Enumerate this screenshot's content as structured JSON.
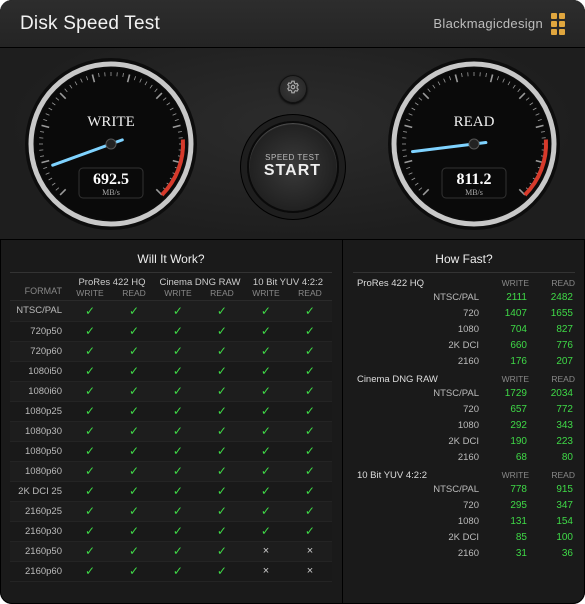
{
  "header": {
    "app_title": "Disk Speed Test",
    "brand_text": "Blackmagicdesign",
    "brand_dot_color": "#e0a63e"
  },
  "controls": {
    "gear_icon_name": "gear-icon",
    "start_line1": "SPEED TEST",
    "start_line2": "START"
  },
  "gauges": {
    "write": {
      "label": "WRITE",
      "value": "692.5",
      "unit": "MB/s",
      "needle_angle_deg": 160,
      "needle_color": "#7fd3ff",
      "rim_color": "#c8c8c8",
      "tick_color": "#9a9a9a",
      "red_zone_color": "#d63a2b",
      "face_color": "#0a0a0a"
    },
    "read": {
      "label": "READ",
      "value": "811.2",
      "unit": "MB/s",
      "needle_angle_deg": 173,
      "needle_color": "#7fd3ff",
      "rim_color": "#c8c8c8",
      "tick_color": "#9a9a9a",
      "red_zone_color": "#d63a2b",
      "face_color": "#0a0a0a"
    }
  },
  "will_it_work": {
    "title": "Will It Work?",
    "format_header": "FORMAT",
    "sub_headers": {
      "write": "WRITE",
      "read": "READ"
    },
    "codecs": [
      "ProRes 422 HQ",
      "Cinema DNG RAW",
      "10 Bit YUV 4:2:2"
    ],
    "rows": [
      {
        "format": "NTSC/PAL",
        "cells": [
          1,
          1,
          1,
          1,
          1,
          1
        ]
      },
      {
        "format": "720p50",
        "cells": [
          1,
          1,
          1,
          1,
          1,
          1
        ]
      },
      {
        "format": "720p60",
        "cells": [
          1,
          1,
          1,
          1,
          1,
          1
        ]
      },
      {
        "format": "1080i50",
        "cells": [
          1,
          1,
          1,
          1,
          1,
          1
        ]
      },
      {
        "format": "1080i60",
        "cells": [
          1,
          1,
          1,
          1,
          1,
          1
        ]
      },
      {
        "format": "1080p25",
        "cells": [
          1,
          1,
          1,
          1,
          1,
          1
        ]
      },
      {
        "format": "1080p30",
        "cells": [
          1,
          1,
          1,
          1,
          1,
          1
        ]
      },
      {
        "format": "1080p50",
        "cells": [
          1,
          1,
          1,
          1,
          1,
          1
        ]
      },
      {
        "format": "1080p60",
        "cells": [
          1,
          1,
          1,
          1,
          1,
          1
        ]
      },
      {
        "format": "2K DCI 25",
        "cells": [
          1,
          1,
          1,
          1,
          1,
          1
        ]
      },
      {
        "format": "2160p25",
        "cells": [
          1,
          1,
          1,
          1,
          1,
          1
        ]
      },
      {
        "format": "2160p30",
        "cells": [
          1,
          1,
          1,
          1,
          1,
          1
        ]
      },
      {
        "format": "2160p50",
        "cells": [
          1,
          1,
          1,
          1,
          0,
          0
        ]
      },
      {
        "format": "2160p60",
        "cells": [
          1,
          1,
          1,
          1,
          0,
          0
        ]
      }
    ],
    "check_color": "#3fd947",
    "cross_color": "#cccccc"
  },
  "how_fast": {
    "title": "How Fast?",
    "sub_headers": {
      "write": "WRITE",
      "read": "READ"
    },
    "value_color": "#3fd947",
    "sections": [
      {
        "name": "ProRes 422 HQ",
        "rows": [
          {
            "res": "NTSC/PAL",
            "write": 2111,
            "read": 2482
          },
          {
            "res": "720",
            "write": 1407,
            "read": 1655
          },
          {
            "res": "1080",
            "write": 704,
            "read": 827
          },
          {
            "res": "2K DCI",
            "write": 660,
            "read": 776
          },
          {
            "res": "2160",
            "write": 176,
            "read": 207
          }
        ]
      },
      {
        "name": "Cinema DNG RAW",
        "rows": [
          {
            "res": "NTSC/PAL",
            "write": 1729,
            "read": 2034
          },
          {
            "res": "720",
            "write": 657,
            "read": 772
          },
          {
            "res": "1080",
            "write": 292,
            "read": 343
          },
          {
            "res": "2K DCI",
            "write": 190,
            "read": 223
          },
          {
            "res": "2160",
            "write": 68,
            "read": 80
          }
        ]
      },
      {
        "name": "10 Bit YUV 4:2:2",
        "rows": [
          {
            "res": "NTSC/PAL",
            "write": 778,
            "read": 915
          },
          {
            "res": "720",
            "write": 295,
            "read": 347
          },
          {
            "res": "1080",
            "write": 131,
            "read": 154
          },
          {
            "res": "2K DCI",
            "write": 85,
            "read": 100
          },
          {
            "res": "2160",
            "write": 31,
            "read": 36
          }
        ]
      }
    ]
  }
}
